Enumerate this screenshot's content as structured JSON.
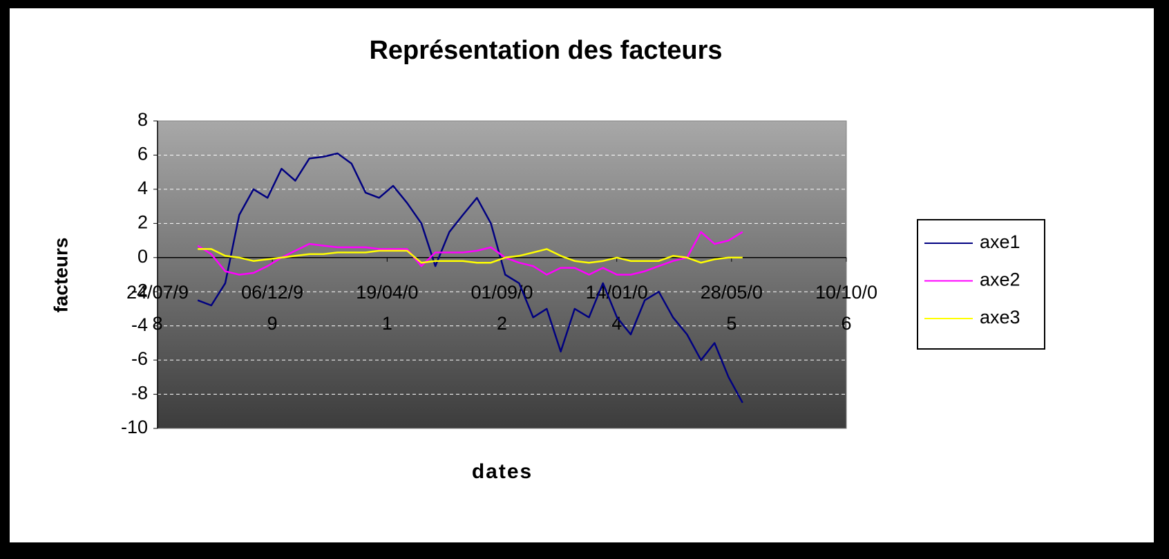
{
  "chart_data": {
    "type": "line",
    "title": "Représentation des facteurs",
    "x_label": "dates",
    "y_label": "facteurs",
    "x": [
      "1999-01-15",
      "1999-03-15",
      "1999-05-15",
      "1999-07-15",
      "1999-09-15",
      "1999-11-15",
      "2000-01-15",
      "2000-03-15",
      "2000-05-15",
      "2000-07-15",
      "2000-09-15",
      "2000-11-15",
      "2001-01-15",
      "2001-03-15",
      "2001-05-15",
      "2001-07-15",
      "2001-09-15",
      "2001-11-15",
      "2002-01-15",
      "2002-03-15",
      "2002-05-15",
      "2002-07-15",
      "2002-09-15",
      "2002-11-15",
      "2003-01-15",
      "2003-03-15",
      "2003-05-15",
      "2003-07-15",
      "2003-09-15",
      "2003-11-15",
      "2004-01-15",
      "2004-03-15",
      "2004-05-15",
      "2004-07-15",
      "2004-09-15",
      "2004-11-15",
      "2005-01-15",
      "2005-03-15",
      "2005-05-15",
      "2005-07-15"
    ],
    "series": [
      {
        "name": "axe1",
        "color": "#000080",
        "values": [
          -2.5,
          -2.8,
          -1.5,
          2.5,
          4.0,
          3.5,
          5.2,
          4.5,
          5.8,
          5.9,
          6.1,
          5.5,
          3.8,
          3.5,
          4.2,
          3.2,
          2.0,
          -0.5,
          1.5,
          2.5,
          3.5,
          2.0,
          -1.0,
          -1.5,
          -3.5,
          -3.0,
          -5.5,
          -3.0,
          -3.5,
          -1.5,
          -3.5,
          -4.5,
          -2.5,
          -2.0,
          -3.5,
          -4.5,
          -6.0,
          -5.0,
          -7.0,
          -8.5
        ]
      },
      {
        "name": "axe2",
        "color": "#ff00ff",
        "values": [
          0.7,
          0.2,
          -0.8,
          -1.0,
          -0.9,
          -0.5,
          0.0,
          0.4,
          0.8,
          0.7,
          0.6,
          0.6,
          0.6,
          0.5,
          0.5,
          0.5,
          -0.5,
          0.3,
          0.3,
          0.3,
          0.4,
          0.6,
          0.0,
          -0.3,
          -0.5,
          -1.0,
          -0.6,
          -0.6,
          -1.0,
          -0.6,
          -1.0,
          -1.0,
          -0.8,
          -0.5,
          -0.2,
          0.0,
          1.5,
          0.8,
          1.0,
          1.5
        ]
      },
      {
        "name": "axe3",
        "color": "#ffff00",
        "values": [
          0.5,
          0.5,
          0.1,
          0.0,
          -0.2,
          -0.1,
          0.0,
          0.1,
          0.2,
          0.2,
          0.3,
          0.3,
          0.3,
          0.4,
          0.4,
          0.4,
          -0.3,
          -0.2,
          -0.2,
          -0.2,
          -0.3,
          -0.3,
          0.0,
          0.1,
          0.3,
          0.5,
          0.1,
          -0.2,
          -0.3,
          -0.2,
          0.0,
          -0.2,
          -0.2,
          -0.2,
          0.1,
          0.0,
          -0.3,
          -0.1,
          0.0,
          0.0
        ]
      }
    ],
    "xlim": [
      "1998-07-24",
      "2006-10-10"
    ],
    "xticks": [
      {
        "value": "1998-07-24",
        "label": "24/07/98"
      },
      {
        "value": "1999-12-06",
        "label": "06/12/99"
      },
      {
        "value": "2001-04-19",
        "label": "19/04/01"
      },
      {
        "value": "2002-09-01",
        "label": "01/09/02"
      },
      {
        "value": "2004-01-14",
        "label": "14/01/04"
      },
      {
        "value": "2005-05-28",
        "label": "28/05/05"
      },
      {
        "value": "2006-10-10",
        "label": "10/10/06"
      }
    ],
    "ylim": [
      -10,
      8
    ],
    "yticks": [
      -10,
      -8,
      -6,
      -4,
      -2,
      0,
      2,
      4,
      6,
      8
    ],
    "grid": true,
    "legend": "right"
  }
}
